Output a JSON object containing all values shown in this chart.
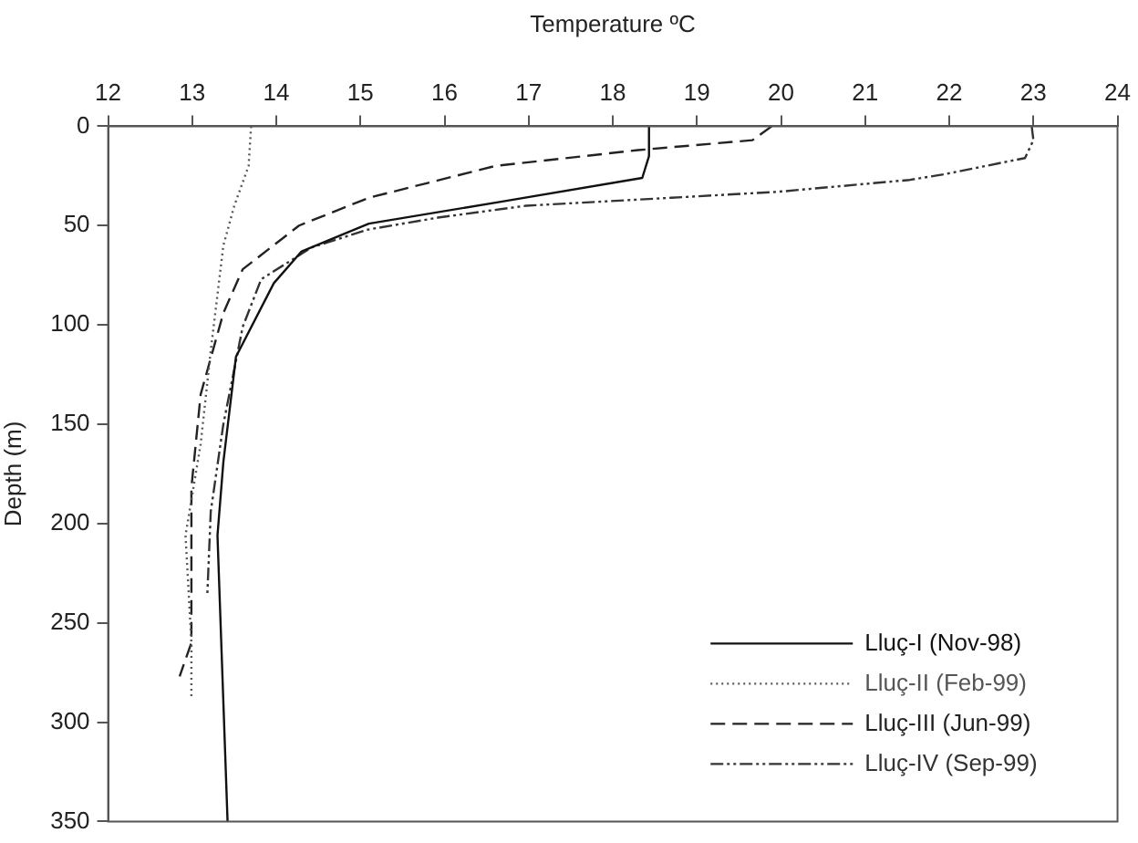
{
  "chart_data": {
    "type": "line",
    "xlabel": "Temperature ºC",
    "ylabel": "Depth (m)",
    "xlim": [
      12,
      24
    ],
    "xticks": [
      12,
      13,
      14,
      15,
      16,
      17,
      18,
      19,
      20,
      21,
      22,
      23,
      24
    ],
    "ylim": [
      350,
      0
    ],
    "yticks": [
      0,
      50,
      100,
      150,
      200,
      250,
      300,
      350
    ],
    "grid": false,
    "legend": "bottom right",
    "marker": "none",
    "series": [
      {
        "name": "Lluç-I (Nov-98)",
        "color": "#111111",
        "line_style": "solid",
        "x": [
          18.43,
          18.43,
          18.35,
          16.67,
          15.1,
          14.3,
          13.97,
          13.52,
          13.37,
          13.3,
          13.42
        ],
        "values": [
          0,
          15,
          26,
          38,
          49,
          63,
          79,
          116,
          169,
          206,
          350
        ]
      },
      {
        "name": "Lluç-II (Feb-99)",
        "color": "#555555",
        "line_style": "dotted",
        "x": [
          13.7,
          13.67,
          13.5,
          13.37,
          13.22,
          13.1,
          12.92,
          12.99,
          12.99
        ],
        "values": [
          0,
          20,
          40,
          60,
          113,
          160,
          206,
          260,
          288
        ]
      },
      {
        "name": "Lluç-III (Jun-99)",
        "color": "#222222",
        "line_style": "dashed",
        "x": [
          19.89,
          19.66,
          18.3,
          16.6,
          15.1,
          14.27,
          13.6,
          13.37,
          13.1,
          12.99,
          12.99,
          12.85
        ],
        "values": [
          0,
          7,
          12,
          20,
          36,
          50,
          72,
          94,
          135,
          182,
          260,
          277
        ]
      },
      {
        "name": "Lluç-IV (Sep-99)",
        "color": "#333333",
        "line_style": "dashdot",
        "x": [
          22.98,
          23.0,
          22.9,
          21.96,
          21.53,
          19.96,
          18.69,
          16.97,
          15.92,
          15.09,
          14.42,
          13.82,
          13.6,
          13.37,
          13.22,
          13.18
        ],
        "values": [
          0,
          7,
          16,
          24,
          27,
          33,
          36,
          40,
          46,
          52,
          61,
          77,
          101,
          150,
          194,
          235
        ]
      }
    ]
  }
}
